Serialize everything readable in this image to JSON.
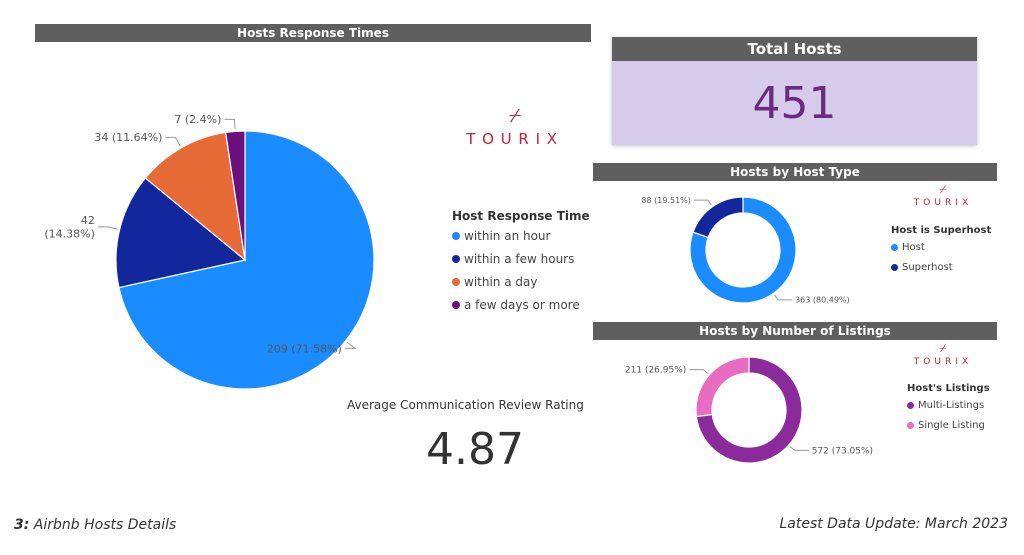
{
  "page_footer": {
    "section_number": "3:",
    "section_title": "Airbnb Hosts Details",
    "update_text": "Latest Data Update: March 2023"
  },
  "logo": {
    "text": "TOURIX",
    "color": "#c4213b",
    "icon": "tourix-logo-icon"
  },
  "total_hosts": {
    "title": "Total Hosts",
    "value": "451",
    "bg_color": "#d6cbea",
    "value_color": "#6a2b7f"
  },
  "avg_rating": {
    "label": "Average Communication Review Rating",
    "value": "4.87"
  },
  "chart_data": [
    {
      "id": "response",
      "type": "pie",
      "title": "Hosts Response Times",
      "legend_title": "Host Response Time",
      "legend_position": "right",
      "categories": [
        "within an hour",
        "within a few hours",
        "within a day",
        "a few days or more"
      ],
      "values": [
        209,
        42,
        34,
        7
      ],
      "labels": [
        "209 (71.58%)",
        "42 (14.38%)",
        "34 (11.64%)",
        "7 (2.4%)"
      ],
      "colors": [
        "#1a8cff",
        "#13279c",
        "#e66b37",
        "#6b0f7c"
      ]
    },
    {
      "id": "host_type",
      "type": "donut",
      "title": "Hosts by Host Type",
      "legend_title": "Host is Superhost",
      "legend_position": "right",
      "categories": [
        "Host",
        "Superhost"
      ],
      "values": [
        363,
        88
      ],
      "labels": [
        "363 (80.49%)",
        "88 (19.51%)"
      ],
      "colors": [
        "#1a8cff",
        "#13279c"
      ]
    },
    {
      "id": "listings",
      "type": "donut",
      "title": "Hosts by Number of Listings",
      "legend_title": "Host's Listings",
      "legend_position": "right",
      "categories": [
        "Multi-Listings",
        "Single Listing"
      ],
      "values": [
        572,
        211
      ],
      "labels": [
        "572 (73.05%)",
        "211 (26.95%)"
      ],
      "colors": [
        "#8a2a9b",
        "#e86cc1"
      ]
    }
  ]
}
